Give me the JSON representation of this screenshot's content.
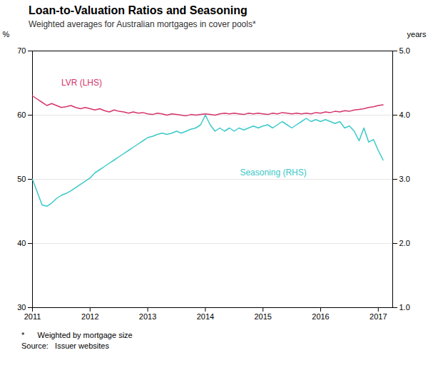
{
  "chart_data": {
    "type": "line",
    "title": "Loan-to-Valuation Ratios and Seasoning",
    "subtitle": "Weighted averages for Australian mortgages in cover pools*",
    "footnotes": [
      "*      Weighted by mortgage size",
      "Source:   Issuer websites"
    ],
    "ylabel": "%",
    "y2label": "years",
    "xlim": [
      2011.0,
      2017.25
    ],
    "xticks": [
      2011,
      2012,
      2013,
      2014,
      2015,
      2016,
      2017
    ],
    "ylim": [
      30,
      70
    ],
    "yticks": [
      30,
      40,
      50,
      60,
      70
    ],
    "y2lim": [
      1,
      5
    ],
    "y2ticks": [
      1,
      2,
      3,
      4,
      5
    ],
    "grid": true,
    "x": [
      2011.0,
      2011.083,
      2011.167,
      2011.25,
      2011.333,
      2011.417,
      2011.5,
      2011.583,
      2011.667,
      2011.75,
      2011.833,
      2011.917,
      2012.0,
      2012.083,
      2012.167,
      2012.25,
      2012.333,
      2012.417,
      2012.5,
      2012.583,
      2012.667,
      2012.75,
      2012.833,
      2012.917,
      2013.0,
      2013.083,
      2013.167,
      2013.25,
      2013.333,
      2013.417,
      2013.5,
      2013.583,
      2013.667,
      2013.75,
      2013.833,
      2013.917,
      2014.0,
      2014.083,
      2014.167,
      2014.25,
      2014.333,
      2014.417,
      2014.5,
      2014.583,
      2014.667,
      2014.75,
      2014.833,
      2014.917,
      2015.0,
      2015.083,
      2015.167,
      2015.25,
      2015.333,
      2015.417,
      2015.5,
      2015.583,
      2015.667,
      2015.75,
      2015.833,
      2015.917,
      2016.0,
      2016.083,
      2016.167,
      2016.25,
      2016.333,
      2016.417,
      2016.5,
      2016.583,
      2016.667,
      2016.75,
      2016.833,
      2016.917,
      2017.0,
      2017.083
    ],
    "series": [
      {
        "name": "LVR (LHS)",
        "color": "#D6336C",
        "values": [
          63.0,
          62.5,
          62.0,
          61.5,
          61.8,
          61.5,
          61.2,
          61.3,
          61.5,
          61.2,
          61.0,
          61.2,
          61.0,
          60.8,
          61.0,
          60.7,
          60.5,
          60.8,
          60.6,
          60.5,
          60.3,
          60.5,
          60.3,
          60.4,
          60.2,
          60.1,
          60.3,
          60.2,
          60.0,
          60.2,
          60.1,
          60.0,
          59.9,
          60.1,
          60.0,
          60.1,
          60.2,
          60.1,
          60.0,
          60.2,
          60.3,
          60.2,
          60.3,
          60.2,
          60.1,
          60.3,
          60.2,
          60.3,
          60.2,
          60.1,
          60.3,
          60.2,
          60.4,
          60.3,
          60.2,
          60.3,
          60.2,
          60.3,
          60.2,
          60.4,
          60.3,
          60.5,
          60.4,
          60.6,
          60.5,
          60.7,
          60.6,
          60.8,
          60.9,
          61.0,
          61.2,
          61.3,
          61.5,
          61.6
        ]
      },
      {
        "name": "Seasoning (RHS)",
        "color": "#3BC8C8",
        "axis": "y2",
        "values": [
          3.0,
          2.8,
          2.6,
          2.58,
          2.63,
          2.7,
          2.75,
          2.78,
          2.82,
          2.87,
          2.92,
          2.97,
          3.02,
          3.1,
          3.15,
          3.2,
          3.25,
          3.3,
          3.35,
          3.4,
          3.45,
          3.5,
          3.55,
          3.6,
          3.65,
          3.67,
          3.7,
          3.72,
          3.7,
          3.72,
          3.75,
          3.72,
          3.75,
          3.78,
          3.8,
          3.85,
          4.0,
          3.85,
          3.75,
          3.8,
          3.75,
          3.8,
          3.75,
          3.8,
          3.77,
          3.8,
          3.83,
          3.8,
          3.83,
          3.85,
          3.8,
          3.85,
          3.9,
          3.85,
          3.8,
          3.85,
          3.9,
          3.95,
          3.9,
          3.93,
          3.9,
          3.93,
          3.9,
          3.87,
          3.9,
          3.8,
          3.83,
          3.75,
          3.6,
          3.8,
          3.58,
          3.62,
          3.45,
          3.3
        ]
      }
    ]
  }
}
